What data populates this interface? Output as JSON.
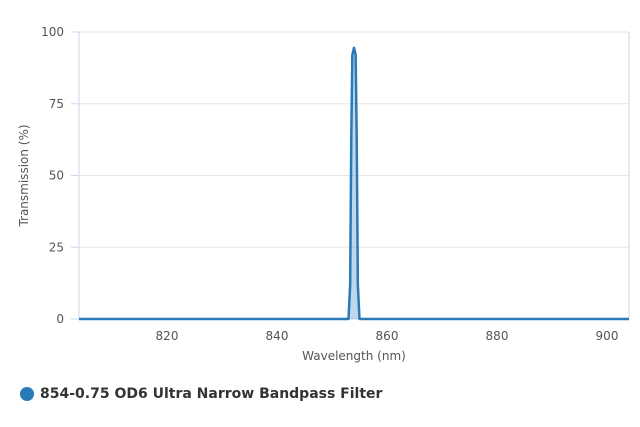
{
  "chart_data": {
    "type": "area",
    "title": "",
    "xlabel": "Wavelength (nm)",
    "ylabel": "Transmission (%)",
    "xlim": [
      804,
      904
    ],
    "ylim": [
      0,
      100
    ],
    "xticks": [
      820,
      840,
      860,
      880,
      900
    ],
    "yticks": [
      0,
      25,
      50,
      75,
      100
    ],
    "grid": true,
    "legend_position": "bottom-left",
    "series": [
      {
        "name": "854-0.75 OD6 Ultra Narrow Bandpass Filter",
        "color": "#2a7ab8",
        "x": [
          804,
          853.0,
          853.3,
          853.5,
          853.7,
          854.0,
          854.3,
          854.5,
          854.7,
          855.0,
          904
        ],
        "y": [
          0,
          0,
          12,
          62,
          92,
          94.5,
          92,
          62,
          12,
          0,
          0
        ]
      }
    ]
  }
}
